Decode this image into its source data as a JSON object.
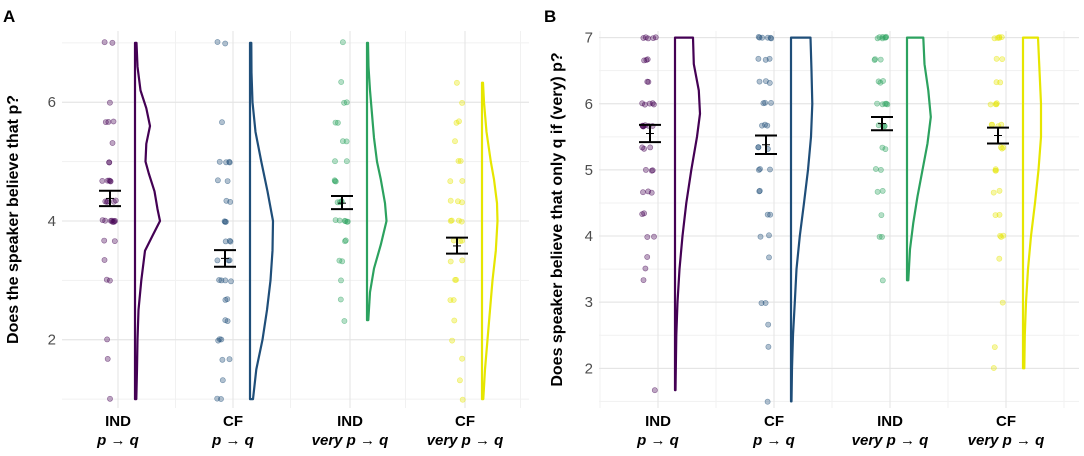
{
  "chart_data": [
    {
      "panel": "A",
      "type": "scatter",
      "ylabel": "Does the speaker believe that p?",
      "ylim": [
        0.85,
        7.2
      ],
      "yticks": [
        2,
        4,
        6
      ],
      "categories": [
        {
          "line1": "IND",
          "line2": "p → q"
        },
        {
          "line1": "CF",
          "line2": "p → q"
        },
        {
          "line1": "IND",
          "line2": "very p → q"
        },
        {
          "line1": "CF",
          "line2": "very p →  q"
        }
      ],
      "series": [
        {
          "name": "IND p → q",
          "color": "#440154",
          "mean": 4.38,
          "se_low": 4.25,
          "se_high": 4.51,
          "points": [
            7,
            7,
            6,
            5.67,
            5.67,
            5.67,
            5.33,
            5,
            5,
            4.67,
            4.67,
            4.67,
            4.67,
            4.67,
            4.33,
            4.33,
            4.33,
            4.33,
            4.33,
            4,
            4,
            4,
            4,
            4,
            4,
            4,
            4,
            3.67,
            3.67,
            3.33,
            3,
            3,
            2,
            1.67,
            1
          ],
          "density_range": [
            1,
            7
          ],
          "density": [
            [
              1.0,
              0.05
            ],
            [
              1.5,
              0.08
            ],
            [
              2.0,
              0.1
            ],
            [
              2.5,
              0.14
            ],
            [
              3.0,
              0.25
            ],
            [
              3.5,
              0.4
            ],
            [
              3.75,
              0.7
            ],
            [
              4.0,
              1.0
            ],
            [
              4.2,
              0.9
            ],
            [
              4.5,
              0.78
            ],
            [
              4.8,
              0.55
            ],
            [
              5.0,
              0.42
            ],
            [
              5.3,
              0.45
            ],
            [
              5.6,
              0.6
            ],
            [
              5.9,
              0.45
            ],
            [
              6.2,
              0.22
            ],
            [
              6.6,
              0.1
            ],
            [
              7.0,
              0.06
            ]
          ]
        },
        {
          "name": "CF p → q",
          "color": "#1f4e79",
          "mean": 3.37,
          "se_low": 3.23,
          "se_high": 3.51,
          "points": [
            7,
            7,
            5.67,
            5,
            5,
            5,
            5,
            4.67,
            4.67,
            4.33,
            4.33,
            4,
            4,
            4,
            3.67,
            3.67,
            3.67,
            3.33,
            3.33,
            3.33,
            3,
            3,
            3,
            3,
            2.67,
            2.67,
            2.33,
            2.33,
            2,
            2,
            2,
            1.67,
            1.67,
            1.33,
            1,
            1
          ],
          "density_range": [
            1,
            7
          ],
          "density": [
            [
              1.0,
              0.12
            ],
            [
              1.5,
              0.25
            ],
            [
              2.0,
              0.5
            ],
            [
              2.5,
              0.68
            ],
            [
              3.0,
              0.82
            ],
            [
              3.5,
              0.9
            ],
            [
              4.0,
              0.92
            ],
            [
              4.5,
              0.7
            ],
            [
              5.0,
              0.45
            ],
            [
              5.5,
              0.22
            ],
            [
              6.0,
              0.1
            ],
            [
              6.5,
              0.06
            ],
            [
              7.0,
              0.05
            ]
          ]
        },
        {
          "name": "IND very p → q",
          "color": "#2ca25f",
          "mean": 4.3,
          "se_low": 4.2,
          "se_high": 4.42,
          "points": [
            7,
            6.33,
            6,
            6,
            5.67,
            5.67,
            5.33,
            5.33,
            5,
            5,
            4.67,
            4.67,
            4.67,
            4.33,
            4.33,
            4.33,
            4.33,
            4,
            4,
            4,
            4,
            4,
            4,
            3.67,
            3.67,
            3.33,
            3.33,
            3,
            2.67,
            2.33
          ],
          "density_range": [
            2.33,
            7
          ],
          "density": [
            [
              2.33,
              0.05
            ],
            [
              2.8,
              0.12
            ],
            [
              3.2,
              0.28
            ],
            [
              3.6,
              0.55
            ],
            [
              4.0,
              0.78
            ],
            [
              4.3,
              0.72
            ],
            [
              4.7,
              0.55
            ],
            [
              5.0,
              0.4
            ],
            [
              5.4,
              0.28
            ],
            [
              5.8,
              0.2
            ],
            [
              6.2,
              0.12
            ],
            [
              6.6,
              0.06
            ],
            [
              7.0,
              0.04
            ]
          ]
        },
        {
          "name": "CF very p → q",
          "color": "#e6e600",
          "mean": 3.58,
          "se_low": 3.45,
          "se_high": 3.72,
          "points": [
            6.33,
            6,
            5.67,
            5.67,
            5.33,
            5,
            5,
            4.67,
            4.67,
            4.33,
            4.33,
            4.33,
            4,
            4,
            4,
            4,
            3.67,
            3.67,
            3.67,
            3.33,
            3.33,
            3,
            3,
            2.67,
            2.67,
            2.33,
            2,
            1.67,
            1.33,
            1
          ],
          "density_range": [
            1,
            6.33
          ],
          "density": [
            [
              1.0,
              0.05
            ],
            [
              1.5,
              0.12
            ],
            [
              2.0,
              0.22
            ],
            [
              2.5,
              0.32
            ],
            [
              3.0,
              0.42
            ],
            [
              3.5,
              0.55
            ],
            [
              4.0,
              0.62
            ],
            [
              4.3,
              0.6
            ],
            [
              4.7,
              0.48
            ],
            [
              5.0,
              0.35
            ],
            [
              5.5,
              0.18
            ],
            [
              6.0,
              0.08
            ],
            [
              6.33,
              0.04
            ]
          ]
        }
      ]
    },
    {
      "panel": "B",
      "type": "scatter",
      "ylabel": "Does speaker believe that only q if (very) p?",
      "ylim": [
        1.4,
        7.1
      ],
      "yticks": [
        2,
        3,
        4,
        5,
        6,
        7
      ],
      "categories": [
        {
          "line1": "IND",
          "line2": "p → q"
        },
        {
          "line1": "CF",
          "line2": "p → q"
        },
        {
          "line1": "IND",
          "line2": "very p → q"
        },
        {
          "line1": "CF",
          "line2": "very p →  q"
        }
      ],
      "series": [
        {
          "name": "IND p → q",
          "color": "#440154",
          "mean": 5.55,
          "se_low": 5.42,
          "se_high": 5.68,
          "points": [
            7,
            7,
            7,
            7,
            7,
            6.67,
            6.67,
            6.67,
            6.33,
            6.33,
            6,
            6,
            6,
            6,
            6,
            5.67,
            5.67,
            5.67,
            5.67,
            5.67,
            5.67,
            5.67,
            5.33,
            5.33,
            5.33,
            5,
            5,
            5,
            4.67,
            4.67,
            4.67,
            4.33,
            4.33,
            4,
            4,
            3.67,
            3.5,
            3.33,
            1.67
          ],
          "density_range": [
            1.67,
            7
          ],
          "density": [
            [
              1.67,
              0.02
            ],
            [
              2.5,
              0.05
            ],
            [
              3.0,
              0.1
            ],
            [
              3.5,
              0.18
            ],
            [
              4.0,
              0.3
            ],
            [
              4.5,
              0.45
            ],
            [
              5.0,
              0.65
            ],
            [
              5.5,
              0.88
            ],
            [
              5.85,
              1.0
            ],
            [
              6.2,
              0.95
            ],
            [
              6.6,
              0.75
            ],
            [
              7.0,
              0.72
            ]
          ]
        },
        {
          "name": "CF p → q",
          "color": "#1f4e79",
          "mean": 5.38,
          "se_low": 5.24,
          "se_high": 5.52,
          "points": [
            7,
            7,
            7,
            7,
            7,
            7,
            6.67,
            6.67,
            6.67,
            6.33,
            6.33,
            6.33,
            6,
            6,
            6,
            5.67,
            5.67,
            5.67,
            5.33,
            5.33,
            5.33,
            5,
            5,
            5,
            4.67,
            4.67,
            4.33,
            4.33,
            4,
            4,
            3.67,
            3,
            3,
            2.67,
            2.33,
            1.5
          ],
          "density_range": [
            1.5,
            7
          ],
          "density": [
            [
              1.5,
              0.02
            ],
            [
              2.0,
              0.04
            ],
            [
              2.5,
              0.08
            ],
            [
              3.0,
              0.15
            ],
            [
              3.5,
              0.22
            ],
            [
              4.0,
              0.35
            ],
            [
              4.5,
              0.52
            ],
            [
              5.0,
              0.68
            ],
            [
              5.5,
              0.8
            ],
            [
              6.0,
              0.85
            ],
            [
              6.5,
              0.82
            ],
            [
              7.0,
              0.78
            ]
          ]
        },
        {
          "name": "IND very p → q",
          "color": "#2ca25f",
          "mean": 5.7,
          "se_low": 5.6,
          "se_high": 5.8,
          "points": [
            7,
            7,
            7,
            7,
            7,
            7,
            7,
            6.67,
            6.67,
            6.67,
            6.33,
            6.33,
            6.33,
            6,
            6,
            6,
            6,
            6,
            5.67,
            5.67,
            5.67,
            5.67,
            5.33,
            5.33,
            5,
            5,
            4.67,
            4.67,
            4.33,
            4,
            4,
            3.33
          ],
          "density_range": [
            3.33,
            7
          ],
          "density": [
            [
              3.33,
              0.05
            ],
            [
              3.8,
              0.12
            ],
            [
              4.2,
              0.25
            ],
            [
              4.6,
              0.42
            ],
            [
              5.0,
              0.62
            ],
            [
              5.4,
              0.82
            ],
            [
              5.8,
              0.95
            ],
            [
              6.2,
              0.85
            ],
            [
              6.6,
              0.7
            ],
            [
              7.0,
              0.65
            ]
          ]
        },
        {
          "name": "CF very p → q",
          "color": "#e6e600",
          "mean": 5.52,
          "se_low": 5.4,
          "se_high": 5.64,
          "points": [
            7,
            7,
            7,
            7,
            7,
            6.67,
            6.67,
            6.33,
            6.33,
            6,
            6,
            6,
            6,
            5.67,
            5.67,
            5.67,
            5.67,
            5.33,
            5.33,
            5.33,
            5,
            5,
            5,
            4.67,
            4.67,
            4.33,
            4.33,
            4,
            4,
            4,
            3.67,
            3,
            2.33,
            2
          ],
          "density_range": [
            2,
            7
          ],
          "density": [
            [
              2.0,
              0.05
            ],
            [
              2.5,
              0.07
            ],
            [
              3.0,
              0.12
            ],
            [
              3.5,
              0.2
            ],
            [
              4.0,
              0.32
            ],
            [
              4.5,
              0.48
            ],
            [
              5.0,
              0.62
            ],
            [
              5.5,
              0.72
            ],
            [
              6.0,
              0.72
            ],
            [
              6.5,
              0.66
            ],
            [
              7.0,
              0.6
            ]
          ]
        }
      ]
    }
  ]
}
